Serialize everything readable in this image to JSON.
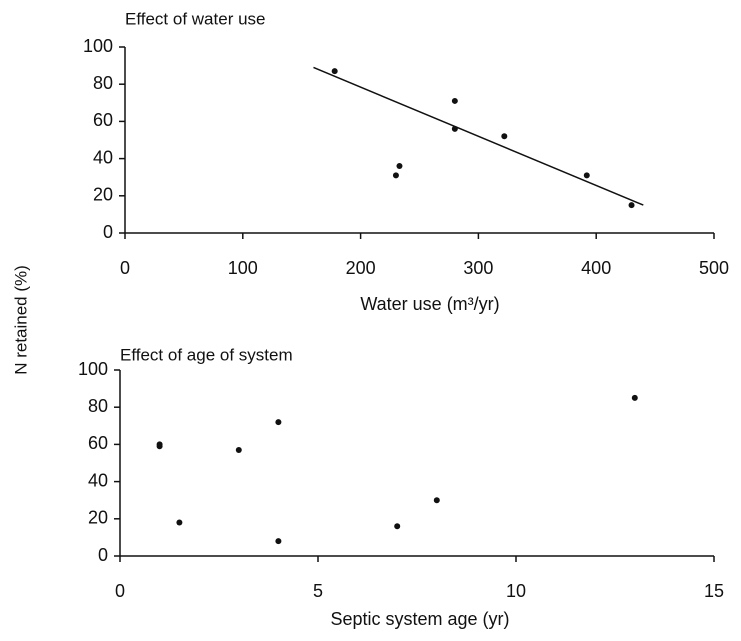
{
  "chart_data": [
    {
      "type": "scatter",
      "title": "Effect of water use",
      "xlabel": "Water use (m³/yr)",
      "ylabel": "N retained (%)",
      "x": [
        178,
        230,
        233,
        280,
        280,
        322,
        392,
        430
      ],
      "values": [
        87,
        31,
        36,
        71,
        56,
        52,
        31,
        15
      ],
      "fit_line": {
        "x": [
          160,
          440
        ],
        "values": [
          89,
          15
        ]
      },
      "color": "#111111",
      "xlim": [
        0,
        500
      ],
      "xticks": [
        0,
        100,
        200,
        300,
        400,
        500
      ],
      "ylim": [
        0,
        100
      ],
      "yticks": [
        0,
        20,
        40,
        60,
        80,
        100
      ]
    },
    {
      "type": "scatter",
      "title": "Effect of age of system",
      "xlabel": "Septic system age (yr)",
      "x": [
        1,
        1,
        1.5,
        3,
        4,
        4,
        7,
        8,
        13
      ],
      "values": [
        60,
        59,
        18,
        57,
        72,
        8,
        16,
        30,
        85
      ],
      "color": "#111111",
      "xlim": [
        0,
        15
      ],
      "xticks": [
        0,
        5,
        10,
        15
      ],
      "ylim": [
        0,
        100
      ],
      "yticks": [
        0,
        20,
        40,
        60,
        80,
        100
      ]
    }
  ]
}
